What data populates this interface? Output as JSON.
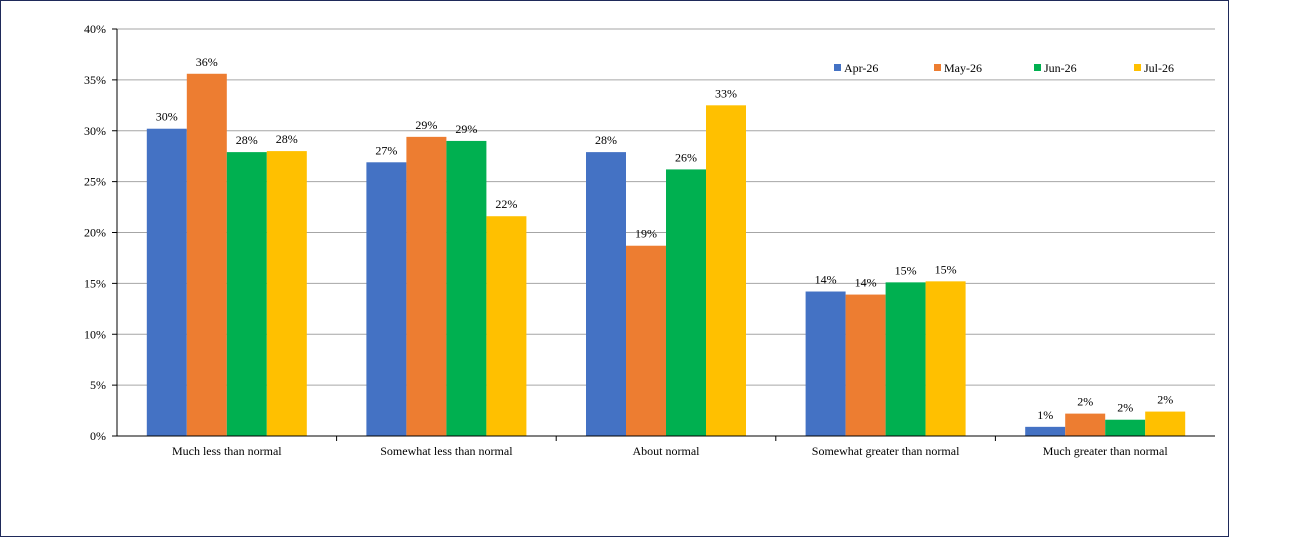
{
  "chart_data": {
    "type": "bar",
    "title": "",
    "xlabel": "",
    "ylabel": "",
    "ylim": [
      0,
      40
    ],
    "yticks": [
      0,
      5,
      10,
      15,
      20,
      25,
      30,
      35,
      40
    ],
    "ytick_labels": [
      "0%",
      "5%",
      "10%",
      "15%",
      "20%",
      "25%",
      "30%",
      "35%",
      "40%"
    ],
    "grid": true,
    "legend_position": "top-right",
    "categories": [
      "Much less than normal",
      "Somewhat less than normal",
      "About normal",
      "Somewhat greater than normal",
      "Much greater than normal"
    ],
    "series": [
      {
        "name": "Apr-26",
        "color": "#4472C4",
        "values": [
          30.2,
          26.9,
          27.9,
          14.2,
          0.9
        ],
        "labels": [
          "30%",
          "27%",
          "28%",
          "14%",
          "1%"
        ]
      },
      {
        "name": "May-26",
        "color": "#ED7D31",
        "values": [
          35.6,
          29.4,
          18.7,
          13.9,
          2.2
        ],
        "labels": [
          "36%",
          "29%",
          "19%",
          "14%",
          "2%"
        ]
      },
      {
        "name": "Jun-26",
        "color": "#00B050",
        "values": [
          27.9,
          29.0,
          26.2,
          15.1,
          1.6
        ],
        "labels": [
          "28%",
          "29%",
          "26%",
          "15%",
          "2%"
        ]
      },
      {
        "name": "Jul-26",
        "color": "#FFC000",
        "values": [
          28.0,
          21.6,
          32.5,
          15.2,
          2.4
        ],
        "labels": [
          "28%",
          "22%",
          "33%",
          "15%",
          "2%"
        ]
      }
    ]
  }
}
